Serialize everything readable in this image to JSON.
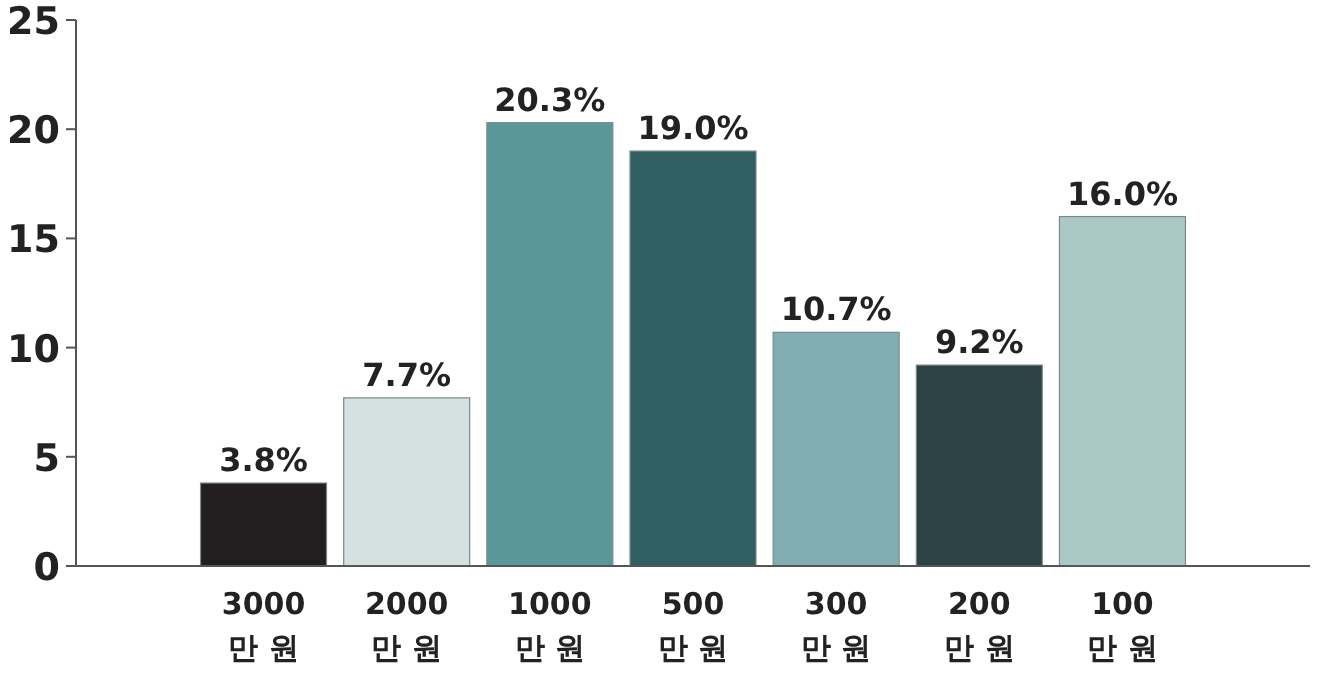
{
  "chart_data": {
    "type": "bar",
    "categories": [
      "3000\n만 원",
      "2000\n만 원",
      "1000\n만 원",
      "500\n만 원",
      "300\n만 원",
      "200\n만 원",
      "100\n만 원"
    ],
    "values": [
      3.8,
      7.7,
      20.3,
      19.0,
      10.7,
      9.2,
      16.0
    ],
    "colors": [
      "#231f20",
      "#d5e0e1",
      "#5a9799",
      "#2f5f60",
      "#82aeb1",
      "#2c4346",
      "#a9c8c6"
    ],
    "value_labels": [
      "3.8%",
      "7.7%",
      "20.3%",
      "19.0%",
      "10.7%",
      "9.2%",
      "16.0%"
    ],
    "ylim": [
      0,
      25
    ],
    "yticks": [
      0,
      5,
      10,
      15,
      20,
      25
    ],
    "grid": false
  }
}
